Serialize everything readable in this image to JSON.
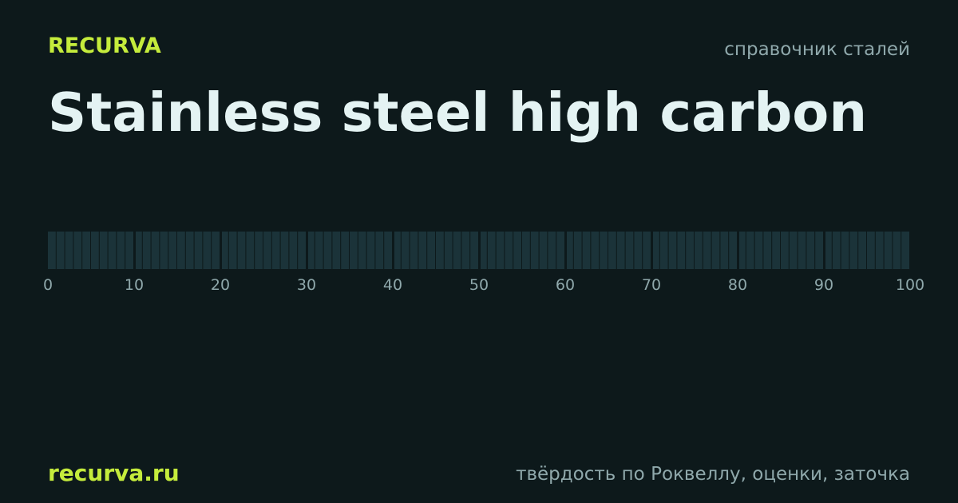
{
  "brand": "RECURVA",
  "tagline": "справочник сталей",
  "title": "Stainless steel high carbon",
  "scale": {
    "min": 0,
    "max": 100,
    "ticks": [
      0,
      10,
      20,
      30,
      40,
      50,
      60,
      70,
      80,
      90,
      100
    ]
  },
  "footer": {
    "site": "recurva.ru",
    "description": "твёрдость по Роквеллу, оценки, заточка"
  }
}
